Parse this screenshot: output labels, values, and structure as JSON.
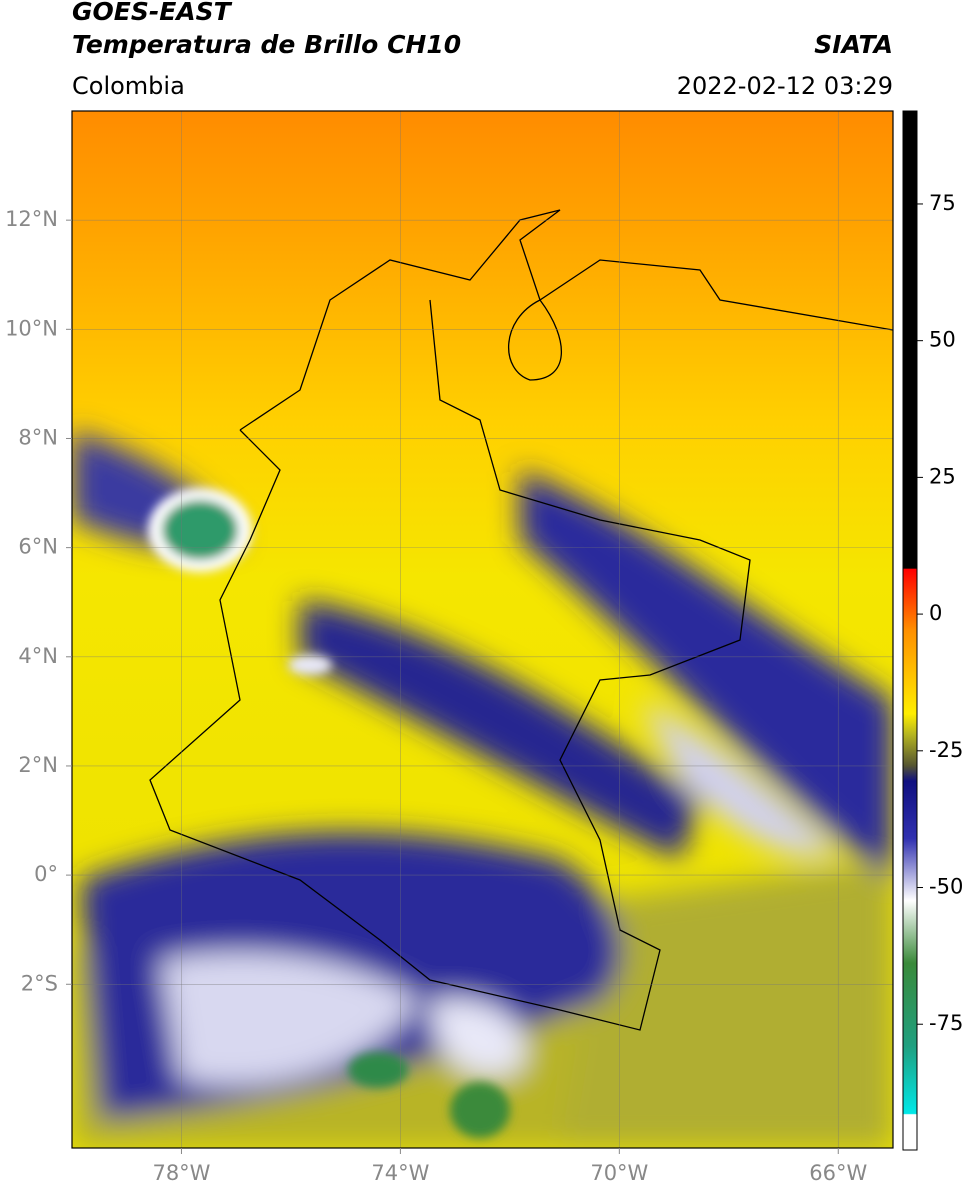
{
  "header": {
    "title": "GOES-EAST",
    "subtitle": "Temperatura de Brillo CH10",
    "source": "SIATA",
    "region": "Colombia",
    "timestamp": "2022-02-12 03:29"
  },
  "map": {
    "xlim": [
      -80,
      -65
    ],
    "ylim": [
      -5,
      14
    ],
    "xticks": [
      {
        "value": -78,
        "label": "78°W"
      },
      {
        "value": -74,
        "label": "74°W"
      },
      {
        "value": -70,
        "label": "70°W"
      },
      {
        "value": -66,
        "label": "66°W"
      }
    ],
    "yticks": [
      {
        "value": 12,
        "label": "12°N"
      },
      {
        "value": 10,
        "label": "10°N"
      },
      {
        "value": 8,
        "label": "8°N"
      },
      {
        "value": 6,
        "label": "6°N"
      },
      {
        "value": 4,
        "label": "4°N"
      },
      {
        "value": 2,
        "label": "2°N"
      },
      {
        "value": 0,
        "label": "0°"
      },
      {
        "value": -2,
        "label": "2°S"
      }
    ],
    "grid": true
  },
  "colorbar": {
    "ylim": [
      -98,
      92
    ],
    "yticks": [
      75,
      50,
      25,
      0,
      -25,
      -50,
      -75
    ]
  }
}
